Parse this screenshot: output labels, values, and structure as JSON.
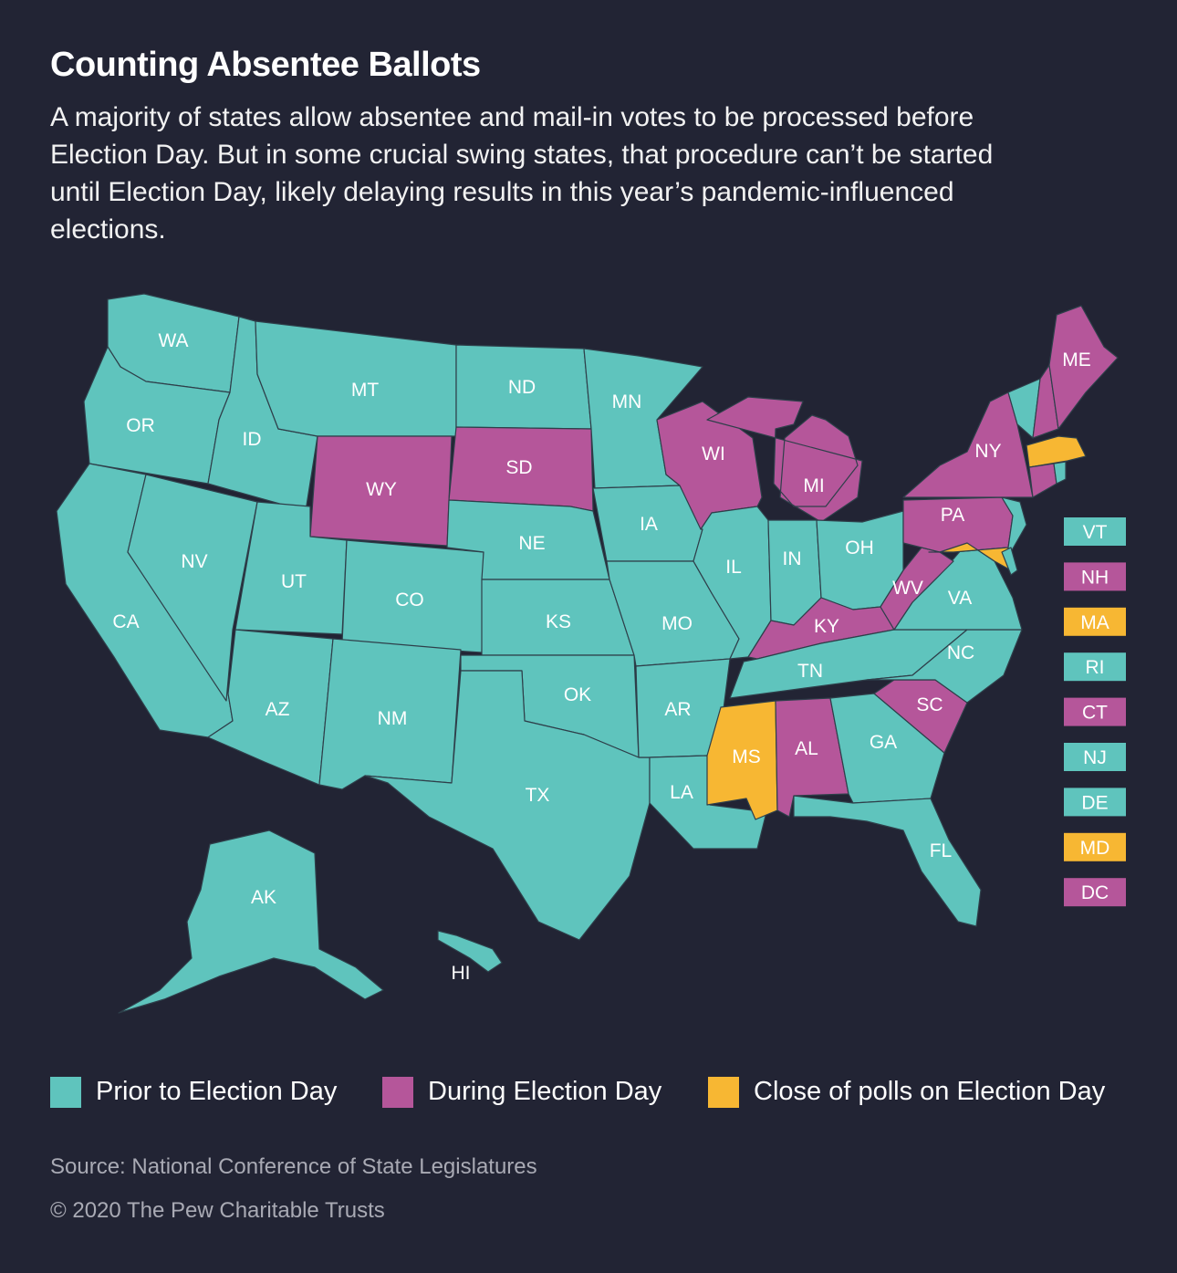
{
  "title": "Counting Absentee Ballots",
  "subtitle": "A majority of states allow absentee and mail-in votes to be processed before Election Day. But in some crucial swing states, that procedure can’t be started until Election Day, likely delaying results in this year’s pandemic-influenced elections.",
  "colors": {
    "prior": "#5fc4bd",
    "during": "#b5569a",
    "close": "#f7b733",
    "background": "#222434",
    "border": "#2e3f4a"
  },
  "legend": [
    {
      "key": "prior",
      "label": "Prior to Election Day"
    },
    {
      "key": "during",
      "label": "During Election Day"
    },
    {
      "key": "close",
      "label": "Close of polls on Election Day"
    }
  ],
  "states": [
    {
      "abbr": "WA",
      "category": "prior"
    },
    {
      "abbr": "OR",
      "category": "prior"
    },
    {
      "abbr": "CA",
      "category": "prior"
    },
    {
      "abbr": "NV",
      "category": "prior"
    },
    {
      "abbr": "ID",
      "category": "prior"
    },
    {
      "abbr": "MT",
      "category": "prior"
    },
    {
      "abbr": "WY",
      "category": "during"
    },
    {
      "abbr": "UT",
      "category": "prior"
    },
    {
      "abbr": "AZ",
      "category": "prior"
    },
    {
      "abbr": "CO",
      "category": "prior"
    },
    {
      "abbr": "NM",
      "category": "prior"
    },
    {
      "abbr": "ND",
      "category": "prior"
    },
    {
      "abbr": "SD",
      "category": "during"
    },
    {
      "abbr": "NE",
      "category": "prior"
    },
    {
      "abbr": "KS",
      "category": "prior"
    },
    {
      "abbr": "OK",
      "category": "prior"
    },
    {
      "abbr": "TX",
      "category": "prior"
    },
    {
      "abbr": "MN",
      "category": "prior"
    },
    {
      "abbr": "IA",
      "category": "prior"
    },
    {
      "abbr": "MO",
      "category": "prior"
    },
    {
      "abbr": "AR",
      "category": "prior"
    },
    {
      "abbr": "LA",
      "category": "prior"
    },
    {
      "abbr": "WI",
      "category": "during"
    },
    {
      "abbr": "IL",
      "category": "prior"
    },
    {
      "abbr": "MI",
      "category": "during"
    },
    {
      "abbr": "IN",
      "category": "prior"
    },
    {
      "abbr": "OH",
      "category": "prior"
    },
    {
      "abbr": "KY",
      "category": "during"
    },
    {
      "abbr": "TN",
      "category": "prior"
    },
    {
      "abbr": "MS",
      "category": "close"
    },
    {
      "abbr": "AL",
      "category": "during"
    },
    {
      "abbr": "GA",
      "category": "prior"
    },
    {
      "abbr": "FL",
      "category": "prior"
    },
    {
      "abbr": "SC",
      "category": "during"
    },
    {
      "abbr": "NC",
      "category": "prior"
    },
    {
      "abbr": "VA",
      "category": "prior"
    },
    {
      "abbr": "WV",
      "category": "during"
    },
    {
      "abbr": "PA",
      "category": "during"
    },
    {
      "abbr": "NY",
      "category": "during"
    },
    {
      "abbr": "ME",
      "category": "during"
    },
    {
      "abbr": "AK",
      "category": "prior"
    },
    {
      "abbr": "HI",
      "category": "prior"
    }
  ],
  "small_states": [
    {
      "abbr": "VT",
      "category": "prior"
    },
    {
      "abbr": "NH",
      "category": "during"
    },
    {
      "abbr": "MA",
      "category": "close"
    },
    {
      "abbr": "RI",
      "category": "prior"
    },
    {
      "abbr": "CT",
      "category": "during"
    },
    {
      "abbr": "NJ",
      "category": "prior"
    },
    {
      "abbr": "DE",
      "category": "prior"
    },
    {
      "abbr": "MD",
      "category": "close"
    },
    {
      "abbr": "DC",
      "category": "during"
    }
  ],
  "source": "Source: National Conference of State Legislatures",
  "copyright": "© 2020 The Pew Charitable Trusts"
}
